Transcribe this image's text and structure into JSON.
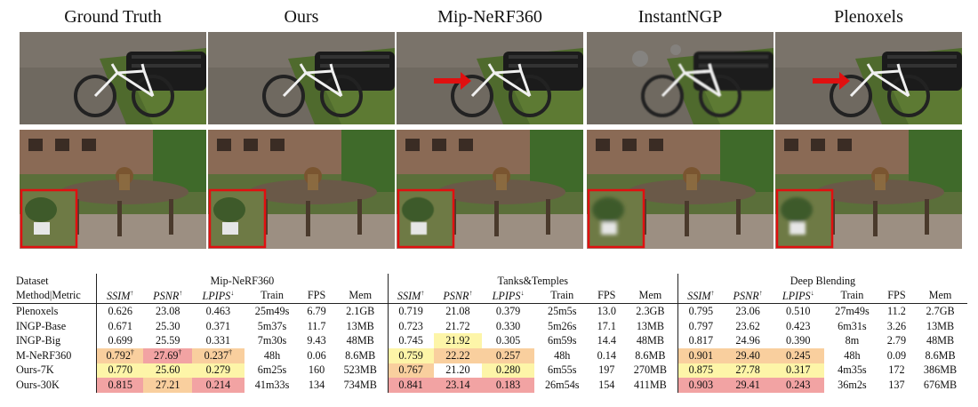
{
  "figure": {
    "columns": [
      "Ground Truth",
      "Ours",
      "Mip-NeRF360",
      "InstantNGP",
      "Plenoxels"
    ]
  },
  "table": {
    "header_left": [
      "Dataset",
      "Method|Metric"
    ],
    "datasets": [
      "Mip-NeRF360",
      "Tanks&Temples",
      "Deep Blending"
    ],
    "metrics": [
      "SSIM",
      "PSNR",
      "LPIPS",
      "Train",
      "FPS",
      "Mem"
    ],
    "metric_arrows": [
      "↑",
      "↑",
      "↓",
      "",
      "",
      ""
    ],
    "rows": [
      {
        "method": "Plenoxels",
        "values": [
          "0.626",
          "23.08",
          "0.463",
          "25m49s",
          "6.79",
          "2.1GB",
          "0.719",
          "21.08",
          "0.379",
          "25m5s",
          "13.0",
          "2.3GB",
          "0.795",
          "23.06",
          "0.510",
          "27m49s",
          "11.2",
          "2.7GB"
        ]
      },
      {
        "method": "INGP-Base",
        "values": [
          "0.671",
          "25.30",
          "0.371",
          "5m37s",
          "11.7",
          "13MB",
          "0.723",
          "21.72",
          "0.330",
          "5m26s",
          "17.1",
          "13MB",
          "0.797",
          "23.62",
          "0.423",
          "6m31s",
          "3.26",
          "13MB"
        ]
      },
      {
        "method": "INGP-Big",
        "values": [
          "0.699",
          "25.59",
          "0.331",
          "7m30s",
          "9.43",
          "48MB",
          "0.745",
          "21.92",
          "0.305",
          "6m59s",
          "14.4",
          "48MB",
          "0.817",
          "24.96",
          "0.390",
          "8m",
          "2.79",
          "48MB"
        ]
      },
      {
        "method": "M-NeRF360",
        "values": [
          "0.792",
          "27.69",
          "0.237",
          "48h",
          "0.06",
          "8.6MB",
          "0.759",
          "22.22",
          "0.257",
          "48h",
          "0.14",
          "8.6MB",
          "0.901",
          "29.40",
          "0.245",
          "48h",
          "0.09",
          "8.6MB"
        ]
      },
      {
        "method": "Ours-7K",
        "values": [
          "0.770",
          "25.60",
          "0.279",
          "6m25s",
          "160",
          "523MB",
          "0.767",
          "21.20",
          "0.280",
          "6m55s",
          "197",
          "270MB",
          "0.875",
          "27.78",
          "0.317",
          "4m35s",
          "172",
          "386MB"
        ]
      },
      {
        "method": "Ours-30K",
        "values": [
          "0.815",
          "27.21",
          "0.214",
          "41m33s",
          "134",
          "734MB",
          "0.841",
          "23.14",
          "0.183",
          "26m54s",
          "154",
          "411MB",
          "0.903",
          "29.41",
          "0.243",
          "36m2s",
          "137",
          "676MB"
        ]
      }
    ],
    "dagger": "†",
    "highlight_colors": {
      "best": "#f2a3a3",
      "second": "#f9cf9e",
      "third": "#fdf5a8"
    }
  }
}
